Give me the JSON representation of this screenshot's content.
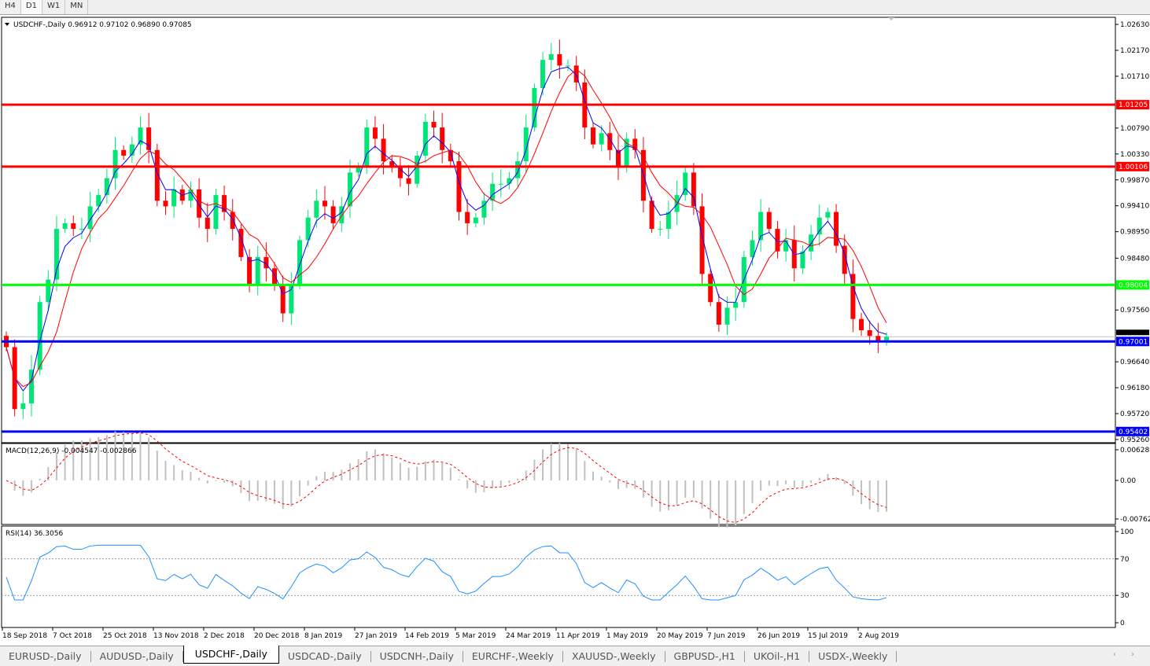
{
  "timeframe_tabs": [
    {
      "label": "H4"
    },
    {
      "label": "D1",
      "active": true
    },
    {
      "label": "W1"
    },
    {
      "label": "MN"
    }
  ],
  "chart_tabs": [
    {
      "label": "EURUSD-,Daily"
    },
    {
      "label": "AUDUSD-,Daily"
    },
    {
      "label": "USDCHF-,Daily",
      "active": true
    },
    {
      "label": "USDCAD-,Daily"
    },
    {
      "label": "USDCNH-,Daily"
    },
    {
      "label": "EURCHF-,Weekly"
    },
    {
      "label": "XAUUSD-,Weekly"
    },
    {
      "label": "GBPUSD-,H1"
    },
    {
      "label": "UKOil-,H1"
    },
    {
      "label": "USDX-,Weekly"
    }
  ],
  "scroll_arrows": "‹ ›",
  "colors": {
    "bull": "#00e676",
    "bear": "#ff0000",
    "ma_fast": "#0000ff",
    "ma_slow": "#ff0000",
    "resistance": "#ff0000",
    "pivot": "#00ff00",
    "support": "#0000ff",
    "rsi": "#1e90ff",
    "macd_hist": "#c0c0c0",
    "macd_signal": "#ff0000"
  },
  "chart_data": {
    "type": "candlestick",
    "header": "USDCHF-,Daily  0.96912 0.97102 0.96890 0.97085",
    "symbol": "USDCHF-,Daily",
    "ohlc_last": {
      "open": 0.96912,
      "high": 0.97102,
      "low": 0.9689,
      "close": 0.97085
    },
    "ylim": [
      0.9526,
      1.0263
    ],
    "y_ticks": [
      "1.02630",
      "1.02170",
      "1.01710",
      "1.00790",
      "1.00330",
      "0.99870",
      "0.99410",
      "0.98950",
      "0.98480",
      "0.97560",
      "0.96640",
      "0.96180",
      "0.95720",
      "0.95260"
    ],
    "x_ticks": [
      "18 Sep 2018",
      "7 Oct 2018",
      "25 Oct 2018",
      "13 Nov 2018",
      "2 Dec 2018",
      "20 Dec 2018",
      "8 Jan 2019",
      "27 Jan 2019",
      "14 Feb 2019",
      "5 Mar 2019",
      "24 Mar 2019",
      "11 Apr 2019",
      "1 May 2019",
      "20 May 2019",
      "7 Jun 2019",
      "26 Jun 2019",
      "15 Jul 2019",
      "2 Aug 2019"
    ],
    "closes": [
      0.969,
      0.958,
      0.959,
      0.965,
      0.977,
      0.981,
      0.99,
      0.991,
      0.99,
      0.99,
      0.994,
      0.996,
      0.999,
      1.004,
      1.003,
      1.005,
      1.008,
      1.004,
      0.995,
      0.994,
      0.997,
      0.995,
      0.997,
      0.992,
      0.99,
      0.996,
      0.993,
      0.99,
      0.985,
      0.98,
      0.985,
      0.983,
      0.98,
      0.975,
      0.98,
      0.988,
      0.992,
      0.995,
      0.994,
      0.991,
      0.994,
      1.0,
      1.001,
      1.008,
      1.006,
      1.002,
      1.001,
      0.999,
      0.998,
      1.003,
      1.009,
      1.008,
      1.004,
      1.002,
      0.993,
      0.991,
      0.992,
      0.995,
      0.998,
      0.998,
      0.999,
      1.002,
      1.008,
      1.015,
      1.02,
      1.021,
      1.019,
      1.019,
      1.016,
      1.008,
      1.005,
      1.007,
      1.004,
      1.001,
      1.006,
      1.004,
      0.995,
      0.99,
      0.99,
      0.993,
      0.996,
      1.0,
      0.994,
      0.982,
      0.977,
      0.973,
      0.976,
      0.977,
      0.985,
      0.988,
      0.993,
      0.99,
      0.986,
      0.988,
      0.983,
      0.986,
      0.989,
      0.992,
      0.993,
      0.987,
      0.982,
      0.974,
      0.972,
      0.971,
      0.97,
      0.97085
    ],
    "levels": [
      {
        "value": 1.01205,
        "label": "1.01205",
        "kind": "resistance"
      },
      {
        "value": 1.00106,
        "label": "1.00106",
        "kind": "resistance"
      },
      {
        "value": 0.98004,
        "label": "0.98004",
        "kind": "pivot"
      },
      {
        "value": 0.97001,
        "label": "0.97001",
        "kind": "support"
      },
      {
        "value": 0.95402,
        "label": "0.95402",
        "kind": "support"
      }
    ],
    "bid_line": {
      "value": 0.97085,
      "label": "0.97085"
    },
    "macd": {
      "label": "MACD(12,26,9) -0.004547 -0.002866",
      "ticks": [
        "0.006286",
        "0.00",
        "-0.00762"
      ],
      "ylim": [
        -0.00762,
        0.006286
      ]
    },
    "rsi": {
      "label": "RSI(14) 36.3056",
      "ticks": [
        "100",
        "70",
        "30",
        "0"
      ],
      "ylim": [
        0,
        100
      ],
      "levels": [
        70,
        30
      ]
    }
  }
}
